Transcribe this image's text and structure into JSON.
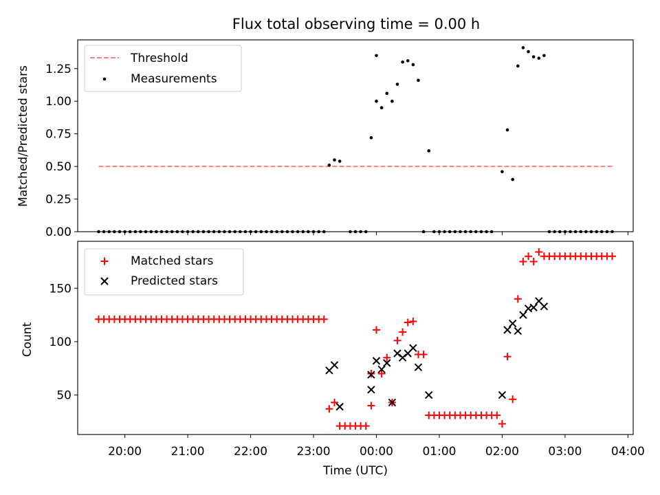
{
  "figure": {
    "title": "Flux total observing time = 0.00 h"
  },
  "chart_data": [
    {
      "type": "scatter",
      "panel": "top",
      "ylabel": "Matched/Predicted stars",
      "xlim": [
        "19:15",
        "04:05"
      ],
      "ylim": [
        0,
        1.47
      ],
      "yticks": [
        0.0,
        0.25,
        0.5,
        0.75,
        1.0,
        1.25
      ],
      "ytick_labels": [
        "0.00",
        "0.25",
        "0.50",
        "0.75",
        "1.00",
        "1.25"
      ],
      "legend_position": "top-left",
      "threshold": {
        "name": "Threshold",
        "value": 0.5,
        "x_range": [
          "19:35",
          "03:46"
        ],
        "color": "#ff7f7f",
        "style": "dashed"
      },
      "series": [
        {
          "name": "Measurements",
          "color": "#000000",
          "marker": "dot",
          "points": [
            [
              "19:35",
              0
            ],
            [
              "19:40",
              0
            ],
            [
              "19:45",
              0
            ],
            [
              "19:50",
              0
            ],
            [
              "19:55",
              0
            ],
            [
              "20:00",
              0
            ],
            [
              "20:05",
              0
            ],
            [
              "20:10",
              0
            ],
            [
              "20:15",
              0
            ],
            [
              "20:20",
              0
            ],
            [
              "20:25",
              0
            ],
            [
              "20:30",
              0
            ],
            [
              "20:35",
              0
            ],
            [
              "20:40",
              0
            ],
            [
              "20:45",
              0
            ],
            [
              "20:50",
              0
            ],
            [
              "20:55",
              0
            ],
            [
              "21:00",
              0
            ],
            [
              "21:05",
              0
            ],
            [
              "21:10",
              0
            ],
            [
              "21:15",
              0
            ],
            [
              "21:20",
              0
            ],
            [
              "21:25",
              0
            ],
            [
              "21:30",
              0
            ],
            [
              "21:35",
              0
            ],
            [
              "21:40",
              0
            ],
            [
              "21:45",
              0
            ],
            [
              "21:50",
              0
            ],
            [
              "21:55",
              0
            ],
            [
              "22:00",
              0
            ],
            [
              "22:05",
              0
            ],
            [
              "22:10",
              0
            ],
            [
              "22:15",
              0
            ],
            [
              "22:20",
              0
            ],
            [
              "22:25",
              0
            ],
            [
              "22:30",
              0
            ],
            [
              "22:35",
              0
            ],
            [
              "22:40",
              0
            ],
            [
              "22:45",
              0
            ],
            [
              "22:50",
              0
            ],
            [
              "22:55",
              0
            ],
            [
              "23:00",
              0
            ],
            [
              "23:05",
              0
            ],
            [
              "23:10",
              0
            ],
            [
              "23:15",
              0.51
            ],
            [
              "23:20",
              0.55
            ],
            [
              "23:25",
              0.54
            ],
            [
              "23:35",
              0
            ],
            [
              "23:40",
              0
            ],
            [
              "23:45",
              0
            ],
            [
              "23:50",
              0
            ],
            [
              "23:55",
              0.72
            ],
            [
              "00:00",
              1.0
            ],
            [
              "00:00",
              1.35
            ],
            [
              "00:05",
              0.95
            ],
            [
              "00:10",
              1.06
            ],
            [
              "00:15",
              1.0
            ],
            [
              "00:20",
              1.13
            ],
            [
              "00:25",
              1.3
            ],
            [
              "00:30",
              1.31
            ],
            [
              "00:35",
              1.28
            ],
            [
              "00:40",
              1.16
            ],
            [
              "00:45",
              0
            ],
            [
              "00:50",
              0.62
            ],
            [
              "00:55",
              0
            ],
            [
              "01:00",
              0
            ],
            [
              "01:05",
              0
            ],
            [
              "01:10",
              0
            ],
            [
              "01:15",
              0
            ],
            [
              "01:20",
              0
            ],
            [
              "01:25",
              0
            ],
            [
              "01:30",
              0
            ],
            [
              "01:35",
              0
            ],
            [
              "01:40",
              0
            ],
            [
              "01:45",
              0
            ],
            [
              "01:50",
              0
            ],
            [
              "02:00",
              0.46
            ],
            [
              "02:05",
              0.78
            ],
            [
              "02:10",
              0.4
            ],
            [
              "02:15",
              1.27
            ],
            [
              "02:20",
              1.41
            ],
            [
              "02:25",
              1.38
            ],
            [
              "02:30",
              1.34
            ],
            [
              "02:35",
              1.33
            ],
            [
              "02:40",
              1.35
            ],
            [
              "02:45",
              0
            ],
            [
              "02:50",
              0
            ],
            [
              "02:55",
              0
            ],
            [
              "03:00",
              0
            ],
            [
              "03:05",
              0
            ],
            [
              "03:10",
              0
            ],
            [
              "03:15",
              0
            ],
            [
              "03:20",
              0
            ],
            [
              "03:25",
              0
            ],
            [
              "03:30",
              0
            ],
            [
              "03:35",
              0
            ],
            [
              "03:40",
              0
            ],
            [
              "03:45",
              0
            ]
          ]
        }
      ]
    },
    {
      "type": "scatter",
      "panel": "bottom",
      "xlabel": "Time (UTC)",
      "ylabel": "Count",
      "xlim": [
        "19:15",
        "04:05"
      ],
      "ylim": [
        13,
        194
      ],
      "xticks": [
        "20:00",
        "21:00",
        "22:00",
        "23:00",
        "00:00",
        "01:00",
        "02:00",
        "03:00",
        "04:00"
      ],
      "xtick_labels": [
        "20:00",
        "21:00",
        "22:00",
        "23:00",
        "00:00",
        "01:00",
        "02:00",
        "03:00",
        "04:00"
      ],
      "yticks": [
        50,
        100,
        150
      ],
      "ytick_labels": [
        "50",
        "100",
        "150"
      ],
      "legend_position": "top-left",
      "series": [
        {
          "name": "Matched stars",
          "color": "#ff0000",
          "marker": "plus",
          "points": [
            [
              "19:35",
              121
            ],
            [
              "19:40",
              121
            ],
            [
              "19:45",
              121
            ],
            [
              "19:50",
              121
            ],
            [
              "19:55",
              121
            ],
            [
              "20:00",
              121
            ],
            [
              "20:05",
              121
            ],
            [
              "20:10",
              121
            ],
            [
              "20:15",
              121
            ],
            [
              "20:20",
              121
            ],
            [
              "20:25",
              121
            ],
            [
              "20:30",
              121
            ],
            [
              "20:35",
              121
            ],
            [
              "20:40",
              121
            ],
            [
              "20:45",
              121
            ],
            [
              "20:50",
              121
            ],
            [
              "20:55",
              121
            ],
            [
              "21:00",
              121
            ],
            [
              "21:05",
              121
            ],
            [
              "21:10",
              121
            ],
            [
              "21:15",
              121
            ],
            [
              "21:20",
              121
            ],
            [
              "21:25",
              121
            ],
            [
              "21:30",
              121
            ],
            [
              "21:35",
              121
            ],
            [
              "21:40",
              121
            ],
            [
              "21:45",
              121
            ],
            [
              "21:50",
              121
            ],
            [
              "21:55",
              121
            ],
            [
              "22:00",
              121
            ],
            [
              "22:05",
              121
            ],
            [
              "22:10",
              121
            ],
            [
              "22:15",
              121
            ],
            [
              "22:20",
              121
            ],
            [
              "22:25",
              121
            ],
            [
              "22:30",
              121
            ],
            [
              "22:35",
              121
            ],
            [
              "22:40",
              121
            ],
            [
              "22:45",
              121
            ],
            [
              "22:50",
              121
            ],
            [
              "22:55",
              121
            ],
            [
              "23:00",
              121
            ],
            [
              "23:05",
              121
            ],
            [
              "23:10",
              121
            ],
            [
              "23:15",
              37
            ],
            [
              "23:20",
              43
            ],
            [
              "23:25",
              21
            ],
            [
              "23:30",
              21
            ],
            [
              "23:35",
              21
            ],
            [
              "23:40",
              21
            ],
            [
              "23:45",
              21
            ],
            [
              "23:50",
              21
            ],
            [
              "23:55",
              40
            ],
            [
              "23:55",
              70
            ],
            [
              "00:00",
              111
            ],
            [
              "00:05",
              70
            ],
            [
              "00:10",
              85
            ],
            [
              "00:15",
              43
            ],
            [
              "00:20",
              101
            ],
            [
              "00:25",
              109
            ],
            [
              "00:30",
              118
            ],
            [
              "00:35",
              119
            ],
            [
              "00:40",
              88
            ],
            [
              "00:45",
              88
            ],
            [
              "00:50",
              31
            ],
            [
              "00:55",
              31
            ],
            [
              "01:00",
              31
            ],
            [
              "01:05",
              31
            ],
            [
              "01:10",
              31
            ],
            [
              "01:15",
              31
            ],
            [
              "01:20",
              31
            ],
            [
              "01:25",
              31
            ],
            [
              "01:30",
              31
            ],
            [
              "01:35",
              31
            ],
            [
              "01:40",
              31
            ],
            [
              "01:45",
              31
            ],
            [
              "01:50",
              31
            ],
            [
              "01:55",
              31
            ],
            [
              "02:00",
              23
            ],
            [
              "02:05",
              86
            ],
            [
              "02:10",
              46
            ],
            [
              "02:15",
              140
            ],
            [
              "02:20",
              175
            ],
            [
              "02:25",
              180
            ],
            [
              "02:30",
              175
            ],
            [
              "02:35",
              184
            ],
            [
              "02:40",
              180
            ],
            [
              "02:45",
              180
            ],
            [
              "02:50",
              180
            ],
            [
              "02:55",
              180
            ],
            [
              "03:00",
              180
            ],
            [
              "03:05",
              180
            ],
            [
              "03:10",
              180
            ],
            [
              "03:15",
              180
            ],
            [
              "03:20",
              180
            ],
            [
              "03:25",
              180
            ],
            [
              "03:30",
              180
            ],
            [
              "03:35",
              180
            ],
            [
              "03:40",
              180
            ],
            [
              "03:45",
              180
            ]
          ]
        },
        {
          "name": "Predicted stars",
          "color": "#000000",
          "marker": "x",
          "points": [
            [
              "23:15",
              73
            ],
            [
              "23:20",
              78
            ],
            [
              "23:25",
              39
            ],
            [
              "23:55",
              55
            ],
            [
              "23:55",
              69
            ],
            [
              "00:00",
              82
            ],
            [
              "00:05",
              74
            ],
            [
              "00:10",
              80
            ],
            [
              "00:15",
              43
            ],
            [
              "00:20",
              89
            ],
            [
              "00:25",
              85
            ],
            [
              "00:30",
              89
            ],
            [
              "00:35",
              94
            ],
            [
              "00:40",
              76
            ],
            [
              "00:50",
              50
            ],
            [
              "02:00",
              50
            ],
            [
              "02:05",
              111
            ],
            [
              "02:10",
              117
            ],
            [
              "02:15",
              110
            ],
            [
              "02:20",
              125
            ],
            [
              "02:25",
              131
            ],
            [
              "02:30",
              132
            ],
            [
              "02:35",
              138
            ],
            [
              "02:40",
              133
            ]
          ]
        }
      ]
    }
  ]
}
